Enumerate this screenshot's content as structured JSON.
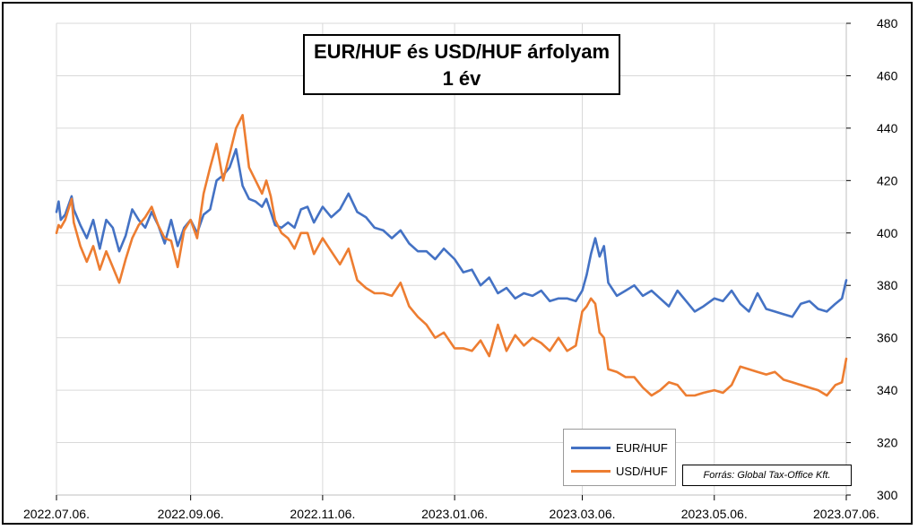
{
  "colors": {
    "eur": "#4472C4",
    "usd": "#ED7D31",
    "grid": "#d9d9d9"
  },
  "title": {
    "line1": "EUR/HUF és USD/HUF árfolyam",
    "line2": "1 év"
  },
  "source": "Forrás: Global Tax-Office Kft.",
  "chart_data": {
    "type": "line",
    "title": "EUR/HUF és USD/HUF árfolyam 1 év",
    "x_ticks": [
      "2022.07.06.",
      "2022.09.06.",
      "2022.11.06.",
      "2023.01.06.",
      "2023.03.06.",
      "2023.05.06.",
      "2023.07.06."
    ],
    "x_range": [
      "2022.07.06.",
      "2023.07.06."
    ],
    "ylim": [
      300,
      480
    ],
    "y_ticks": [
      300,
      320,
      340,
      360,
      380,
      400,
      420,
      440,
      460,
      480
    ],
    "y_axis_side": "right",
    "grid": true,
    "legend": "bottom-right",
    "series": [
      {
        "name": "EUR/HUF",
        "color": "#4472C4",
        "x": [
          "2022.07.06.",
          "2022.07.07.",
          "2022.07.08.",
          "2022.07.10.",
          "2022.07.13.",
          "2022.07.14.",
          "2022.07.17.",
          "2022.07.20.",
          "2022.07.23.",
          "2022.07.26.",
          "2022.07.29.",
          "2022.08.01.",
          "2022.08.04.",
          "2022.08.07.",
          "2022.08.10.",
          "2022.08.13.",
          "2022.08.16.",
          "2022.08.19.",
          "2022.08.22.",
          "2022.08.25.",
          "2022.08.28.",
          "2022.08.31.",
          "2022.09.03.",
          "2022.09.06.",
          "2022.09.09.",
          "2022.09.12.",
          "2022.09.15.",
          "2022.09.18.",
          "2022.09.21.",
          "2022.09.24.",
          "2022.09.27.",
          "2022.09.30.",
          "2022.10.03.",
          "2022.10.06.",
          "2022.10.09.",
          "2022.10.11.",
          "2022.10.13.",
          "2022.10.15.",
          "2022.10.18.",
          "2022.10.21.",
          "2022.10.24.",
          "2022.10.27.",
          "2022.10.30.",
          "2022.11.02.",
          "2022.11.06.",
          "2022.11.10.",
          "2022.11.14.",
          "2022.11.18.",
          "2022.11.22.",
          "2022.11.26.",
          "2022.11.30.",
          "2022.12.04.",
          "2022.12.08.",
          "2022.12.12.",
          "2022.12.16.",
          "2022.12.20.",
          "2022.12.24.",
          "2022.12.28.",
          "2023.01.01.",
          "2023.01.06.",
          "2023.01.10.",
          "2023.01.14.",
          "2023.01.18.",
          "2023.01.22.",
          "2023.01.26.",
          "2023.01.30.",
          "2023.02.03.",
          "2023.02.07.",
          "2023.02.11.",
          "2023.02.15.",
          "2023.02.19.",
          "2023.02.23.",
          "2023.02.27.",
          "2023.03.03.",
          "2023.03.06.",
          "2023.03.08.",
          "2023.03.10.",
          "2023.03.12.",
          "2023.03.14.",
          "2023.03.16.",
          "2023.03.18.",
          "2023.03.22.",
          "2023.03.26.",
          "2023.03.30.",
          "2023.04.03.",
          "2023.04.07.",
          "2023.04.11.",
          "2023.04.15.",
          "2023.04.19.",
          "2023.04.23.",
          "2023.04.27.",
          "2023.05.01.",
          "2023.05.06.",
          "2023.05.10.",
          "2023.05.14.",
          "2023.05.18.",
          "2023.05.22.",
          "2023.05.26.",
          "2023.05.30.",
          "2023.06.03.",
          "2023.06.07.",
          "2023.06.11.",
          "2023.06.15.",
          "2023.06.19.",
          "2023.06.23.",
          "2023.06.27.",
          "2023.07.01.",
          "2023.07.04.",
          "2023.07.06."
        ],
        "values": [
          408,
          412,
          405,
          407,
          414,
          409,
          403,
          398,
          405,
          394,
          405,
          402,
          393,
          399,
          409,
          405,
          402,
          408,
          403,
          396,
          405,
          395,
          402,
          405,
          400,
          407,
          409,
          420,
          422,
          425,
          432,
          418,
          413,
          412,
          410,
          413,
          408,
          403,
          402,
          404,
          402,
          409,
          410,
          404,
          410,
          406,
          409,
          415,
          408,
          406,
          402,
          401,
          398,
          401,
          396,
          393,
          393,
          390,
          394,
          390,
          385,
          386,
          380,
          383,
          377,
          379,
          375,
          377,
          376,
          378,
          374,
          375,
          375,
          374,
          378,
          384,
          392,
          398,
          391,
          395,
          381,
          376,
          378,
          380,
          376,
          378,
          375,
          372,
          378,
          374,
          370,
          372,
          375,
          374,
          378,
          373,
          370,
          377,
          371,
          370,
          369,
          368,
          373,
          374,
          371,
          370,
          373,
          375,
          382
        ]
      },
      {
        "name": "USD/HUF",
        "color": "#ED7D31",
        "x": [
          "2022.07.06.",
          "2022.07.07.",
          "2022.07.08.",
          "2022.07.10.",
          "2022.07.13.",
          "2022.07.14.",
          "2022.07.17.",
          "2022.07.20.",
          "2022.07.23.",
          "2022.07.26.",
          "2022.07.29.",
          "2022.08.01.",
          "2022.08.04.",
          "2022.08.07.",
          "2022.08.10.",
          "2022.08.13.",
          "2022.08.16.",
          "2022.08.19.",
          "2022.08.22.",
          "2022.08.25.",
          "2022.08.28.",
          "2022.08.31.",
          "2022.09.03.",
          "2022.09.06.",
          "2022.09.09.",
          "2022.09.12.",
          "2022.09.15.",
          "2022.09.18.",
          "2022.09.21.",
          "2022.09.24.",
          "2022.09.27.",
          "2022.09.30.",
          "2022.10.03.",
          "2022.10.06.",
          "2022.10.09.",
          "2022.10.11.",
          "2022.10.13.",
          "2022.10.15.",
          "2022.10.18.",
          "2022.10.21.",
          "2022.10.24.",
          "2022.10.27.",
          "2022.10.30.",
          "2022.11.02.",
          "2022.11.06.",
          "2022.11.10.",
          "2022.11.14.",
          "2022.11.18.",
          "2022.11.22.",
          "2022.11.26.",
          "2022.11.30.",
          "2022.12.04.",
          "2022.12.08.",
          "2022.12.12.",
          "2022.12.16.",
          "2022.12.20.",
          "2022.12.24.",
          "2022.12.28.",
          "2023.01.01.",
          "2023.01.06.",
          "2023.01.10.",
          "2023.01.14.",
          "2023.01.18.",
          "2023.01.22.",
          "2023.01.26.",
          "2023.01.30.",
          "2023.02.03.",
          "2023.02.07.",
          "2023.02.11.",
          "2023.02.15.",
          "2023.02.19.",
          "2023.02.23.",
          "2023.02.27.",
          "2023.03.03.",
          "2023.03.06.",
          "2023.03.08.",
          "2023.03.10.",
          "2023.03.12.",
          "2023.03.14.",
          "2023.03.16.",
          "2023.03.18.",
          "2023.03.22.",
          "2023.03.26.",
          "2023.03.30.",
          "2023.04.03.",
          "2023.04.07.",
          "2023.04.11.",
          "2023.04.15.",
          "2023.04.19.",
          "2023.04.23.",
          "2023.04.27.",
          "2023.05.01.",
          "2023.05.06.",
          "2023.05.10.",
          "2023.05.14.",
          "2023.05.18.",
          "2023.05.22.",
          "2023.05.26.",
          "2023.05.30.",
          "2023.06.03.",
          "2023.06.07.",
          "2023.06.11.",
          "2023.06.15.",
          "2023.06.19.",
          "2023.06.23.",
          "2023.06.27.",
          "2023.07.01.",
          "2023.07.04.",
          "2023.07.06."
        ],
        "values": [
          400,
          403,
          402,
          405,
          413,
          404,
          395,
          389,
          395,
          386,
          393,
          387,
          381,
          390,
          398,
          403,
          406,
          410,
          403,
          398,
          397,
          387,
          401,
          405,
          398,
          415,
          425,
          434,
          420,
          430,
          440,
          445,
          425,
          420,
          415,
          420,
          414,
          405,
          400,
          398,
          394,
          400,
          400,
          392,
          398,
          393,
          388,
          394,
          382,
          379,
          377,
          377,
          376,
          381,
          372,
          368,
          365,
          360,
          362,
          356,
          356,
          355,
          359,
          353,
          365,
          355,
          361,
          357,
          360,
          358,
          355,
          360,
          355,
          357,
          370,
          372,
          375,
          373,
          362,
          360,
          348,
          347,
          345,
          345,
          341,
          338,
          340,
          343,
          342,
          338,
          338,
          339,
          340,
          339,
          342,
          349,
          348,
          347,
          346,
          347,
          344,
          343,
          342,
          341,
          340,
          338,
          342,
          343,
          352
        ]
      }
    ]
  }
}
